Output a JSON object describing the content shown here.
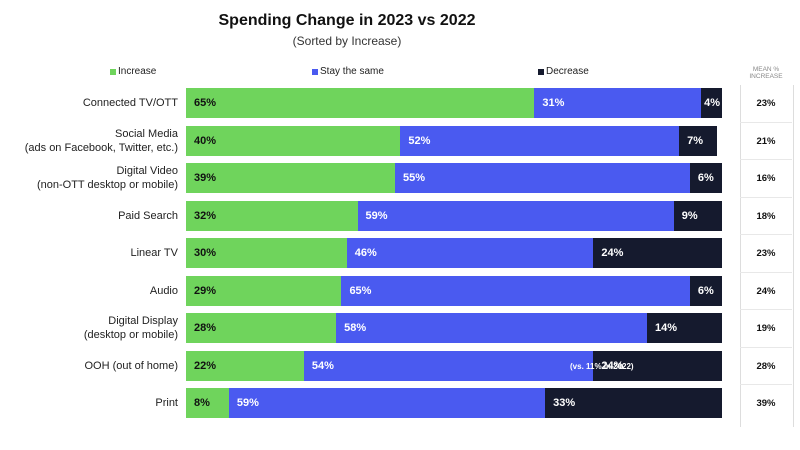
{
  "chart_data": {
    "type": "bar",
    "orientation": "horizontal",
    "stacked": true,
    "title": "Spending Change in 2023 vs 2022",
    "subtitle": "(Sorted by Increase)",
    "mean_header": "MEAN % INCREASE",
    "legend_placement": "top",
    "grid": false,
    "xlim": [
      0,
      100
    ],
    "categories": [
      [
        "Connected TV/OTT"
      ],
      [
        "Social Media",
        "(ads on Facebook, Twitter, etc.)"
      ],
      [
        "Digital Video",
        "(non-OTT desktop or mobile)"
      ],
      [
        "Paid Search"
      ],
      [
        "Linear TV"
      ],
      [
        "Audio"
      ],
      [
        "Digital Display",
        "(desktop or mobile)"
      ],
      [
        "OOH (out of home)"
      ],
      [
        "Print"
      ]
    ],
    "series": [
      {
        "name": "Increase",
        "color": "#6fd45c",
        "text_color": "#111111",
        "values": [
          65,
          40,
          39,
          32,
          30,
          29,
          28,
          22,
          8
        ]
      },
      {
        "name": "Stay the same",
        "color": "#4a5af0",
        "text_color": "#ffffff",
        "values": [
          31,
          52,
          55,
          59,
          46,
          65,
          58,
          54,
          59
        ]
      },
      {
        "name": "Decrease",
        "color": "#151a2e",
        "text_color": "#ffffff",
        "values": [
          4,
          7,
          6,
          9,
          24,
          6,
          14,
          24,
          33
        ]
      }
    ],
    "value_suffix": "%",
    "mean_increase": [
      "23%",
      "21%",
      "16%",
      "18%",
      "23%",
      "24%",
      "19%",
      "28%",
      "39%"
    ],
    "annotations": [
      {
        "row": 7,
        "text": "(vs. 11% in 2022)"
      }
    ]
  }
}
